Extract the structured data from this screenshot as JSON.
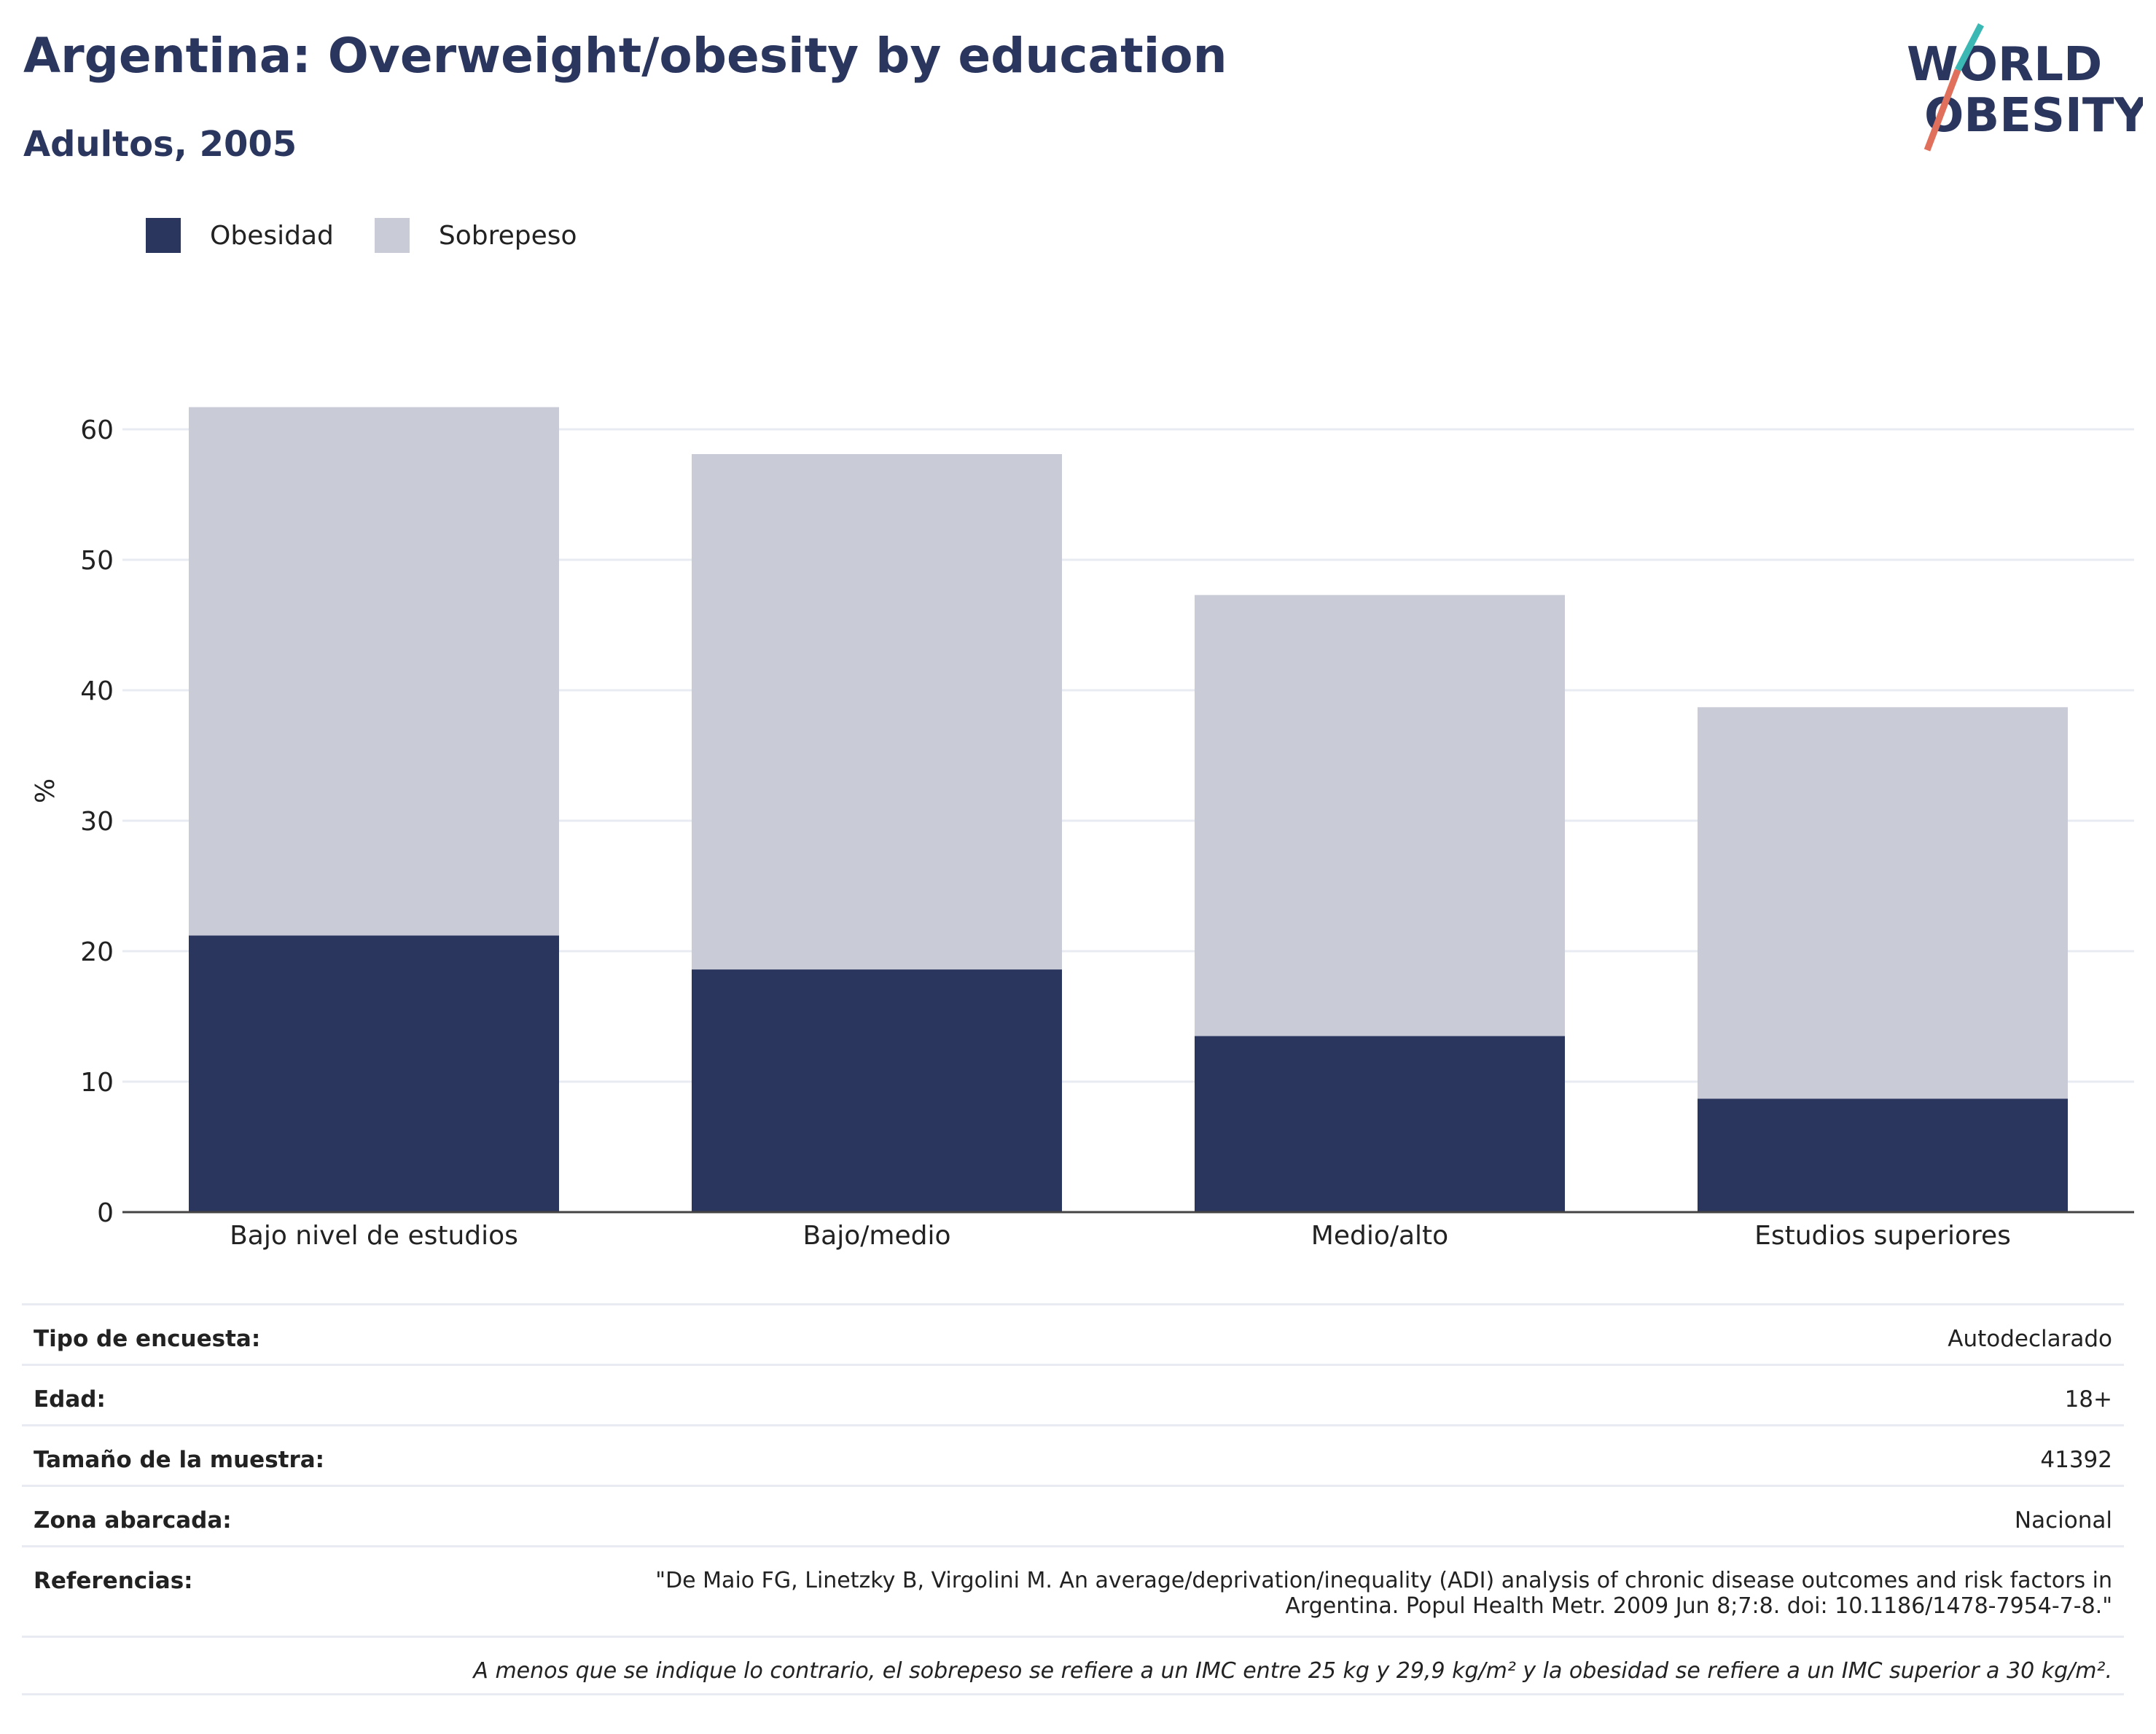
{
  "title": "Argentina: Overweight/obesity by education",
  "subtitle": "Adultos, 2005",
  "logo": {
    "line1": "WORLD",
    "line2": "OBESITY",
    "colors": {
      "text": "#2b365f",
      "slash_teal": "#3bb8b4",
      "slash_coral": "#e0705b"
    }
  },
  "chart_data": {
    "type": "bar",
    "stacked": true,
    "categories": [
      "Bajo nivel de estudios",
      "Bajo/medio",
      "Medio/alto",
      "Estudios superiores"
    ],
    "series": [
      {
        "name": "Obesidad",
        "color": "#2b365f",
        "values": [
          21.2,
          18.6,
          13.5,
          8.7
        ]
      },
      {
        "name": "Sobrepeso",
        "color": "#c9cbd7",
        "values": [
          40.5,
          39.5,
          33.8,
          30.0
        ]
      }
    ],
    "ylabel": "%",
    "ylim": [
      0,
      65
    ],
    "yticks": [
      0,
      10,
      20,
      30,
      40,
      50,
      60
    ],
    "grid": true,
    "legend_position": "top-left"
  },
  "info_table": {
    "rows": [
      {
        "label": "Tipo de encuesta:",
        "value": "Autodeclarado"
      },
      {
        "label": "Edad:",
        "value": "18+"
      },
      {
        "label": "Tamaño de la muestra:",
        "value": "41392"
      },
      {
        "label": "Zona abarcada:",
        "value": "Nacional"
      }
    ],
    "references": {
      "label": "Referencias:",
      "line1": "\"De Maio FG, Linetzky B, Virgolini M. An average/deprivation/inequality (ADI) analysis of chronic disease outcomes and risk factors in",
      "line2": "Argentina. Popul Health Metr. 2009 Jun 8;7:8. doi: 10.1186/1478-7954-7-8.\""
    },
    "note": "A menos que se indique lo contrario, el sobrepeso se refiere a un IMC entre 25 kg y 29,9 kg/m² y la obesidad se refiere a un IMC superior a 30 kg/m²."
  }
}
